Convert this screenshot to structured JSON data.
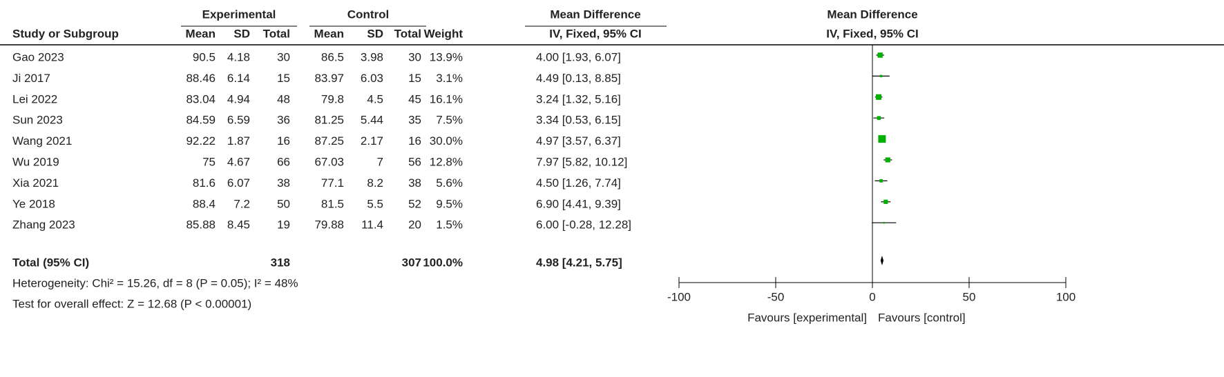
{
  "table": {
    "group_headers": [
      "Experimental",
      "Control",
      "Mean Difference"
    ],
    "columns": [
      "Study or Subgroup",
      "Mean",
      "SD",
      "Total",
      "Mean",
      "SD",
      "Total",
      "Weight",
      "IV, Fixed, 95% CI"
    ],
    "rows": [
      [
        "Gao 2023",
        "90.5",
        "4.18",
        "30",
        "86.5",
        "3.98",
        "30",
        "13.9%",
        "4.00 [1.93, 6.07]"
      ],
      [
        "Ji 2017",
        "88.46",
        "6.14",
        "15",
        "83.97",
        "6.03",
        "15",
        "3.1%",
        "4.49 [0.13, 8.85]"
      ],
      [
        "Lei 2022",
        "83.04",
        "4.94",
        "48",
        "79.8",
        "4.5",
        "45",
        "16.1%",
        "3.24 [1.32, 5.16]"
      ],
      [
        "Sun 2023",
        "84.59",
        "6.59",
        "36",
        "81.25",
        "5.44",
        "35",
        "7.5%",
        "3.34 [0.53, 6.15]"
      ],
      [
        "Wang 2021",
        "92.22",
        "1.87",
        "16",
        "87.25",
        "2.17",
        "16",
        "30.0%",
        "4.97 [3.57, 6.37]"
      ],
      [
        "Wu 2019",
        "75",
        "4.67",
        "66",
        "67.03",
        "7",
        "56",
        "12.8%",
        "7.97 [5.82, 10.12]"
      ],
      [
        "Xia 2021",
        "81.6",
        "6.07",
        "38",
        "77.1",
        "8.2",
        "38",
        "5.6%",
        "4.50 [1.26, 7.74]"
      ],
      [
        "Ye 2018",
        "88.4",
        "7.2",
        "50",
        "81.5",
        "5.5",
        "52",
        "9.5%",
        "6.90 [4.41, 9.39]"
      ],
      [
        "Zhang 2023",
        "85.88",
        "8.45",
        "19",
        "79.88",
        "11.4",
        "20",
        "1.5%",
        "6.00 [-0.28, 12.28]"
      ]
    ],
    "total": [
      "Total (95% CI)",
      "318",
      "307",
      "100.0%",
      "4.98 [4.21, 5.75]"
    ],
    "heterogeneity": "Heterogeneity: Chi² = 15.26, df = 8 (P = 0.05); I² = 48%",
    "overall": "Test for overall effect: Z = 12.68 (P < 0.00001)"
  },
  "chart_data": {
    "type": "forest",
    "title": "Mean Difference",
    "subtitle": "IV, Fixed, 95% CI",
    "xlim": [
      -100,
      100
    ],
    "xticks": [
      -100,
      -50,
      0,
      50,
      100
    ],
    "label_left": "Favours [experimental]",
    "label_right": "Favours [control]",
    "color": "#00b000",
    "estimates": [
      4.0,
      4.49,
      3.24,
      3.34,
      4.97,
      7.97,
      4.5,
      6.9,
      6.0
    ],
    "lower": [
      1.93,
      0.13,
      1.32,
      0.53,
      3.57,
      5.82,
      1.26,
      4.41,
      -0.28
    ],
    "upper": [
      6.07,
      8.85,
      5.16,
      6.15,
      6.37,
      10.12,
      7.74,
      9.39,
      12.28
    ],
    "weights": [
      13.9,
      3.1,
      16.1,
      7.5,
      30.0,
      12.8,
      5.6,
      9.5,
      1.5
    ],
    "total": {
      "estimate": 4.98,
      "lower": 4.21,
      "upper": 5.75
    }
  }
}
